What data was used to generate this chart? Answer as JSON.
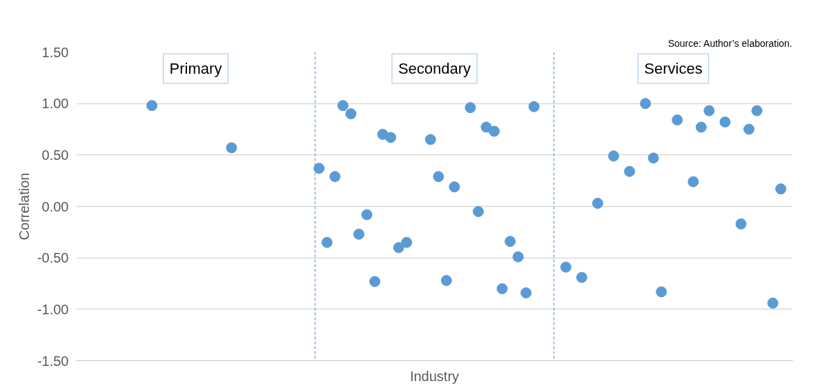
{
  "chart_data": {
    "type": "scatter",
    "xlabel": "Industry",
    "ylabel": "Correlation",
    "annotations": [
      "Source: Author’s elaboration.",
      "Primary",
      "Secondary",
      "Services"
    ],
    "categories": [
      null,
      null,
      null,
      null,
      null,
      null,
      null,
      null,
      null,
      null,
      null,
      null,
      null,
      null,
      null,
      null,
      null,
      null,
      null,
      null,
      null,
      null,
      null,
      null,
      null,
      null,
      null,
      null,
      null,
      null,
      null,
      null,
      null,
      null,
      null,
      null,
      null,
      null,
      null,
      null,
      null,
      null,
      null,
      null,
      null,
      null,
      null,
      null,
      null,
      null,
      null,
      null,
      null,
      null,
      null,
      null,
      null,
      null,
      null,
      null,
      null,
      null,
      null,
      null,
      null,
      null,
      null,
      null,
      null,
      null,
      null,
      null,
      null,
      null,
      null,
      null,
      null,
      null,
      null,
      null,
      null,
      null,
      null,
      null,
      null,
      null,
      null,
      null,
      null,
      null
    ],
    "series": [
      {
        "color": "#5b9bd5",
        "values": [
          null,
          null,
          null,
          null,
          null,
          null,
          null,
          null,
          null,
          0.98,
          null,
          null,
          null,
          null,
          null,
          null,
          null,
          null,
          null,
          0.57,
          null,
          null,
          null,
          null,
          null,
          null,
          null,
          null,
          null,
          null,
          0.37,
          -0.35,
          0.29,
          0.98,
          0.9,
          -0.27,
          -0.08,
          -0.73,
          0.7,
          0.67,
          -0.4,
          -0.35,
          null,
          null,
          0.65,
          0.29,
          -0.72,
          0.19,
          null,
          0.96,
          -0.05,
          0.77,
          0.73,
          -0.8,
          -0.34,
          -0.49,
          -0.84,
          0.97,
          null,
          null,
          null,
          -0.59,
          null,
          -0.69,
          null,
          0.03,
          null,
          0.49,
          null,
          0.34,
          null,
          1.0,
          0.47,
          -0.83,
          null,
          0.84,
          null,
          0.24,
          0.77,
          0.93,
          null,
          0.82,
          null,
          -0.17,
          0.75,
          0.93,
          null,
          -0.94,
          0.17,
          null
        ]
      }
    ],
    "ylim": [
      -1.5,
      1.5
    ],
    "yticks": [
      {
        "value": -1.5,
        "label": "-1.50"
      },
      {
        "value": -1.0,
        "label": "-1.00"
      },
      {
        "value": -0.5,
        "label": "-0.50"
      },
      {
        "value": 0,
        "label": "0.00"
      },
      {
        "value": 0.5,
        "label": "0.50"
      },
      {
        "value": 1.0,
        "label": "1.00"
      },
      {
        "value": 1.5,
        "label": "1.50"
      }
    ],
    "grid": "y",
    "marker": "circle",
    "tick_labels": "y"
  }
}
